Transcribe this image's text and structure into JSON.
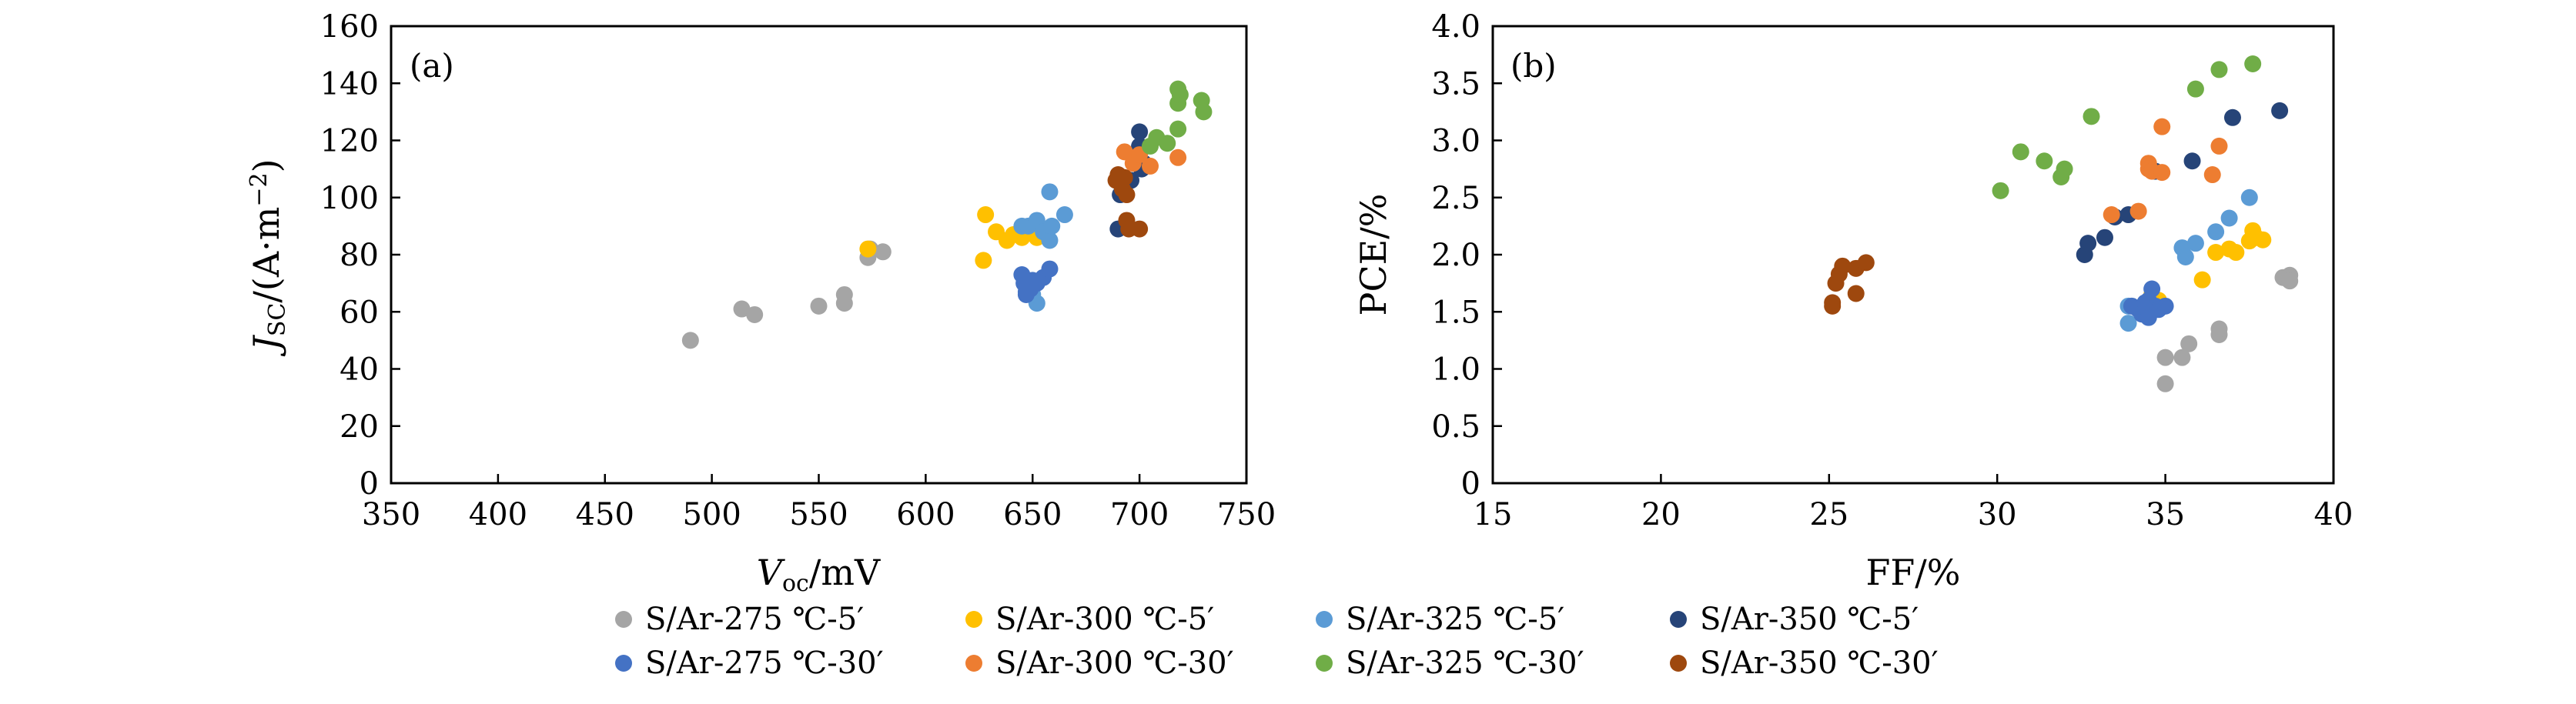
{
  "legend": [
    {
      "name": "S/Ar-275 ℃-5′",
      "color": "#a5a5a5"
    },
    {
      "name": "S/Ar-300 ℃-5′",
      "color": "#ffc000"
    },
    {
      "name": "S/Ar-325 ℃-5′",
      "color": "#5b9bd5"
    },
    {
      "name": "S/Ar-350 ℃-5′",
      "color": "#264478"
    },
    {
      "name": "S/Ar-275 ℃-30′",
      "color": "#4472c4"
    },
    {
      "name": "S/Ar-300 ℃-30′",
      "color": "#ed7d31"
    },
    {
      "name": "S/Ar-325 ℃-30′",
      "color": "#70ad47"
    },
    {
      "name": "S/Ar-350 ℃-30′",
      "color": "#9e480e"
    }
  ],
  "chart_data": [
    {
      "type": "scatter",
      "panel_label": "(a)",
      "xlabel": {
        "main": "V",
        "sub": "oc",
        "unit": "/mV"
      },
      "ylabel": {
        "main": "J",
        "sub": "SC",
        "unit": "/(A·m",
        "sup": "−2",
        "close": ")"
      },
      "xlim": [
        350,
        750
      ],
      "ylim": [
        0,
        160
      ],
      "xticks": [
        350,
        400,
        450,
        500,
        550,
        600,
        650,
        700,
        750
      ],
      "yticks": [
        0,
        20,
        40,
        60,
        80,
        100,
        120,
        140,
        160
      ],
      "grid": false,
      "series": [
        {
          "name": "S/Ar-275 ℃-5′",
          "x": [
            490,
            514,
            520,
            550,
            562,
            562,
            573,
            574,
            580
          ],
          "y": [
            50,
            61,
            59,
            62,
            63,
            66,
            79,
            82,
            81
          ]
        },
        {
          "name": "S/Ar-300 ℃-5′",
          "x": [
            573,
            627,
            628,
            633,
            638,
            641,
            645,
            648,
            652
          ],
          "y": [
            82,
            78,
            94,
            88,
            85,
            87,
            86,
            88,
            86
          ]
        },
        {
          "name": "S/Ar-325 ℃-5′",
          "x": [
            645,
            648,
            652,
            655,
            658,
            658,
            659,
            665,
            652,
            650
          ],
          "y": [
            90,
            90,
            92,
            88,
            102,
            85,
            90,
            94,
            63,
            66
          ]
        },
        {
          "name": "S/Ar-350 ℃-5′",
          "x": [
            690,
            691,
            696,
            700,
            700,
            702,
            701
          ],
          "y": [
            89,
            101,
            106,
            118,
            123,
            112,
            110
          ]
        },
        {
          "name": "S/Ar-275 ℃-30′",
          "x": [
            645,
            646,
            647,
            649,
            650,
            652,
            655,
            658,
            647
          ],
          "y": [
            73,
            70,
            66,
            68,
            71,
            70,
            72,
            75,
            67
          ]
        },
        {
          "name": "S/Ar-300 ℃-30′",
          "x": [
            693,
            697,
            700,
            705,
            718
          ],
          "y": [
            116,
            112,
            115,
            111,
            114
          ]
        },
        {
          "name": "S/Ar-325 ℃-30′",
          "x": [
            705,
            708,
            713,
            718,
            718,
            719,
            718,
            729,
            730
          ],
          "y": [
            118,
            121,
            119,
            124,
            133,
            136,
            138,
            134,
            130
          ]
        },
        {
          "name": "S/Ar-350 ℃-30′",
          "x": [
            689,
            690,
            692,
            693,
            694,
            694,
            695,
            700
          ],
          "y": [
            106,
            108,
            103,
            107,
            101,
            92,
            89,
            89
          ]
        }
      ]
    },
    {
      "type": "scatter",
      "panel_label": "(b)",
      "xlabel": {
        "main": "FF/%"
      },
      "ylabel": {
        "main": "PCE/%"
      },
      "xlim": [
        15,
        40
      ],
      "ylim": [
        0,
        4.0
      ],
      "xticks": [
        15,
        20,
        25,
        30,
        35,
        40
      ],
      "yticks": [
        0,
        0.5,
        1.0,
        1.5,
        2.0,
        2.5,
        3.0,
        3.5,
        4.0
      ],
      "ytick_labels": [
        "0",
        "0.5",
        "1.0",
        "1.5",
        "2.0",
        "2.5",
        "3.0",
        "3.5",
        "4.0"
      ],
      "grid": false,
      "series": [
        {
          "name": "S/Ar-275 ℃-5′",
          "x": [
            35.0,
            35.0,
            35.5,
            35.7,
            36.6,
            36.6,
            38.5,
            38.7,
            38.7
          ],
          "y": [
            1.1,
            0.87,
            1.1,
            1.22,
            1.3,
            1.35,
            1.8,
            1.82,
            1.77
          ]
        },
        {
          "name": "S/Ar-300 ℃-5′",
          "x": [
            34.6,
            34.8,
            36.1,
            36.5,
            36.9,
            37.1,
            37.5,
            37.6,
            37.9,
            37.7
          ],
          "y": [
            1.65,
            1.6,
            1.78,
            2.02,
            2.05,
            2.02,
            2.12,
            2.21,
            2.13,
            2.15
          ]
        },
        {
          "name": "S/Ar-325 ℃-5′",
          "x": [
            33.9,
            33.9,
            35.5,
            35.6,
            35.9,
            36.5,
            36.9,
            37.5
          ],
          "y": [
            1.55,
            1.4,
            2.06,
            1.98,
            2.1,
            2.2,
            2.32,
            2.5
          ]
        },
        {
          "name": "S/Ar-350 ℃-5′",
          "x": [
            32.6,
            32.7,
            33.2,
            33.5,
            33.9,
            34.7,
            35.8,
            37.0,
            38.4
          ],
          "y": [
            2.0,
            2.1,
            2.15,
            2.33,
            2.35,
            2.73,
            2.82,
            3.2,
            3.26
          ]
        },
        {
          "name": "S/Ar-275 ℃-30′",
          "x": [
            34.0,
            34.2,
            34.4,
            34.5,
            34.6,
            34.7,
            34.8,
            35.0,
            34.3,
            34.5
          ],
          "y": [
            1.55,
            1.52,
            1.58,
            1.6,
            1.7,
            1.55,
            1.52,
            1.55,
            1.48,
            1.45
          ]
        },
        {
          "name": "S/Ar-300 ℃-30′",
          "x": [
            33.4,
            34.2,
            34.5,
            34.5,
            34.6,
            34.9,
            34.9,
            36.4,
            36.6
          ],
          "y": [
            2.35,
            2.38,
            2.8,
            2.75,
            2.73,
            2.72,
            3.12,
            2.7,
            2.95
          ]
        },
        {
          "name": "S/Ar-325 ℃-30′",
          "x": [
            30.1,
            30.7,
            31.4,
            31.9,
            32.0,
            32.8,
            35.9,
            36.6,
            37.6
          ],
          "y": [
            2.56,
            2.9,
            2.82,
            2.68,
            2.75,
            3.21,
            3.45,
            3.62,
            3.67
          ]
        },
        {
          "name": "S/Ar-350 ℃-30′",
          "x": [
            25.1,
            25.1,
            25.2,
            25.3,
            25.4,
            25.8,
            25.8,
            26.1
          ],
          "y": [
            1.55,
            1.58,
            1.75,
            1.83,
            1.9,
            1.66,
            1.88,
            1.93
          ]
        }
      ]
    }
  ]
}
